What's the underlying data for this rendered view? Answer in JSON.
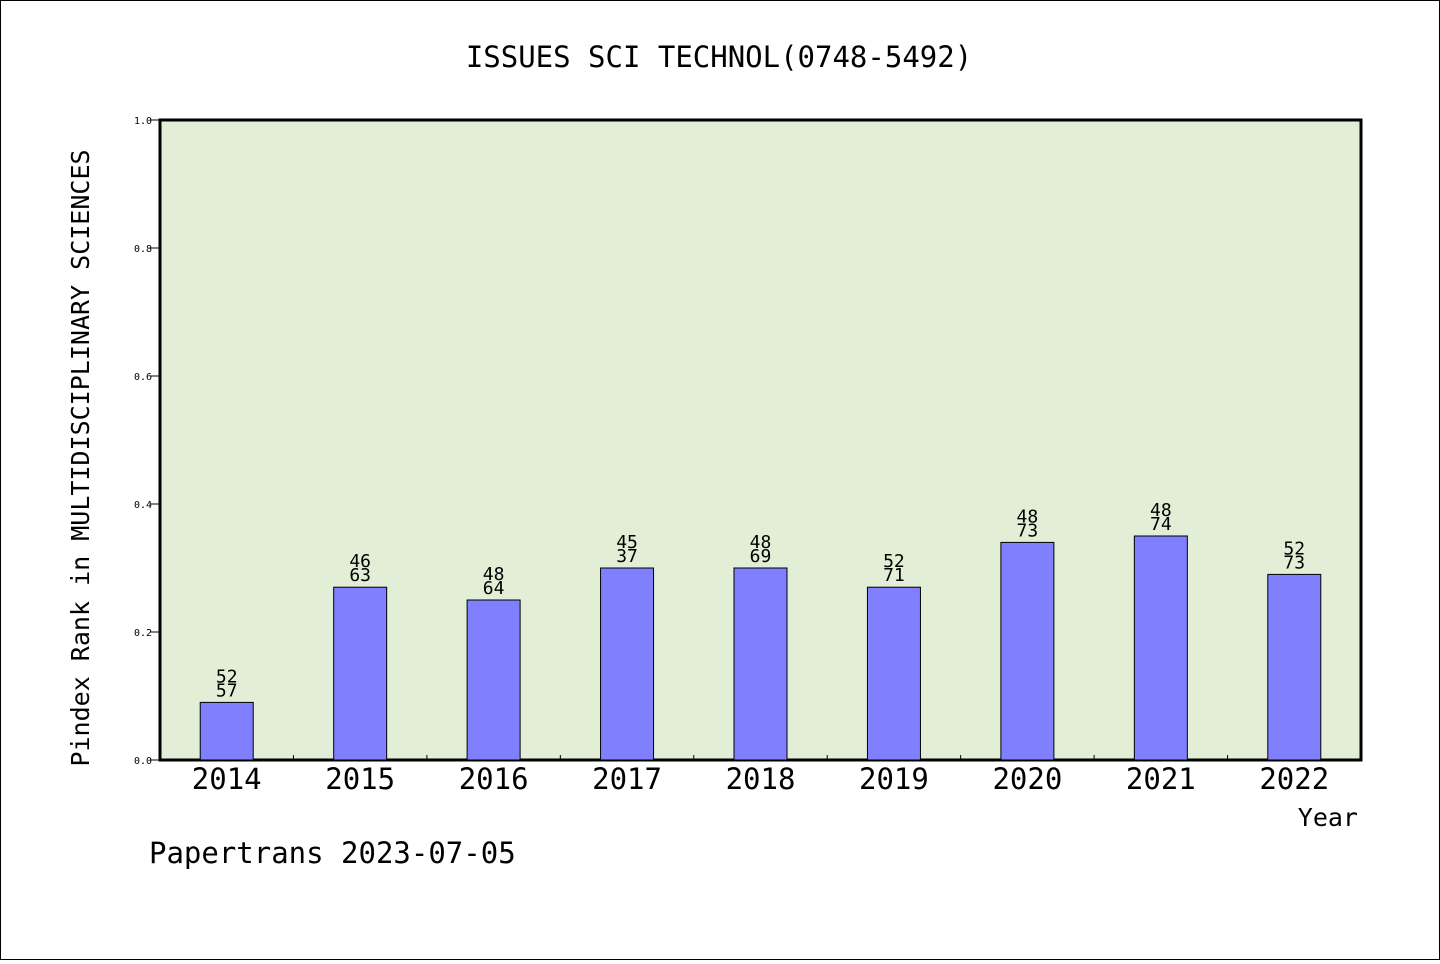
{
  "chart_data": {
    "type": "bar",
    "title": "ISSUES SCI TECHNOL(0748-5492)",
    "xlabel": "Year",
    "ylabel": "Pindex Rank in MULTIDISCIPLINARY SCIENCES",
    "categories": [
      "2014",
      "2015",
      "2016",
      "2017",
      "2018",
      "2019",
      "2020",
      "2021",
      "2022"
    ],
    "values": [
      0.09,
      0.27,
      0.25,
      0.3,
      0.3,
      0.27,
      0.34,
      0.35,
      0.29
    ],
    "label_top": [
      "52",
      "46",
      "48",
      "45",
      "48",
      "52",
      "48",
      "48",
      "52"
    ],
    "label_bottom": [
      "57",
      "63",
      "64",
      "37",
      "69",
      "71",
      "73",
      "74",
      "73"
    ],
    "yticks": [
      "0.0",
      "0.2",
      "0.4",
      "0.6",
      "0.8",
      "1.0"
    ],
    "ylim": [
      0,
      1.0
    ],
    "grid": false,
    "colors": {
      "plot_background": "#e2efd6",
      "bar_fill": "#8080ff",
      "bar_edge": "#000000"
    }
  },
  "footer": "Papertrans 2023-07-05"
}
